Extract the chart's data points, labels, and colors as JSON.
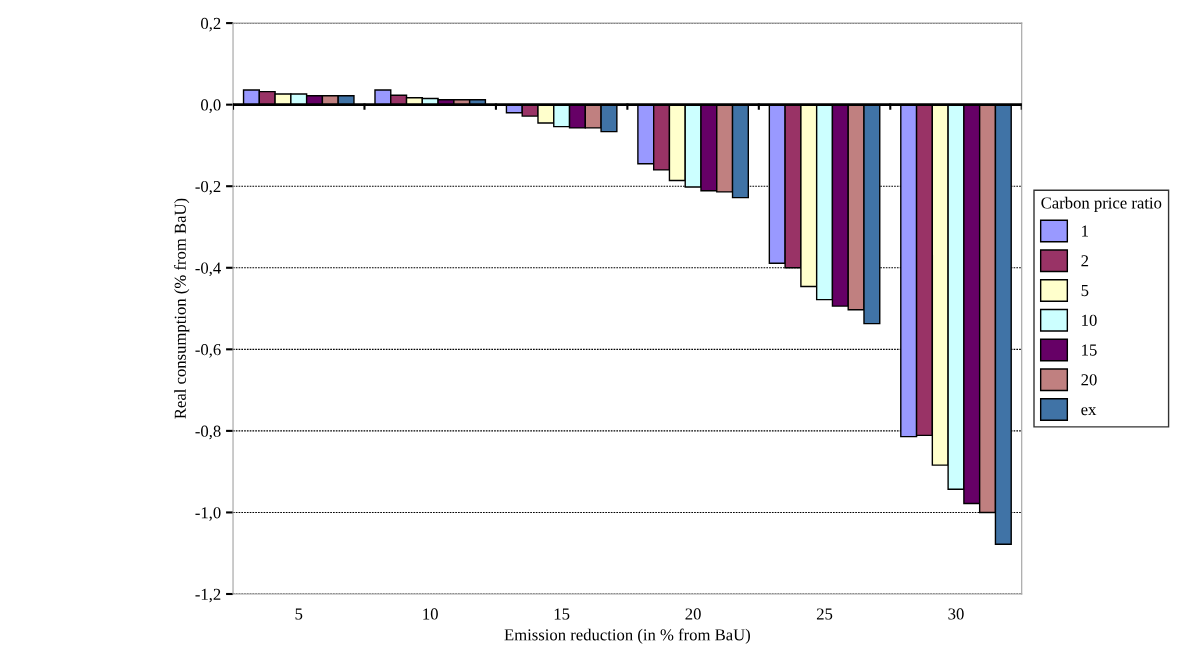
{
  "chart_data": {
    "type": "bar",
    "xlabel": "Emission reduction (in % from BaU)",
    "ylabel": "Real consumption (% from BaU)",
    "legend_title": "Carbon price ratio",
    "legend": "right",
    "grid": "y",
    "categories": [
      "5",
      "10",
      "15",
      "20",
      "25",
      "30"
    ],
    "ylim": [
      -1.2,
      0.2
    ],
    "yticks": [
      {
        "value": 0.2,
        "label": "0,2"
      },
      {
        "value": 0.0,
        "label": "0,0"
      },
      {
        "value": -0.2,
        "label": "-0,2"
      },
      {
        "value": -0.4,
        "label": "-0,4"
      },
      {
        "value": -0.6,
        "label": "-0,6"
      },
      {
        "value": -0.8,
        "label": "-0,8"
      },
      {
        "value": -1.0,
        "label": "-1,0"
      },
      {
        "value": -1.2,
        "label": "-1,2"
      }
    ],
    "ref_lines": [
      {
        "axis": "y",
        "value": 0.0,
        "color": "#000000",
        "line_style": "solid"
      }
    ],
    "series": [
      {
        "name": "1",
        "color": "#9999ff",
        "values": [
          0.036,
          0.036,
          -0.02,
          -0.145,
          -0.389,
          -0.814
        ]
      },
      {
        "name": "2",
        "color": "#993366",
        "values": [
          0.032,
          0.023,
          -0.028,
          -0.16,
          -0.4,
          -0.811
        ]
      },
      {
        "name": "5",
        "color": "#ffffcc",
        "values": [
          0.026,
          0.017,
          -0.045,
          -0.186,
          -0.446,
          -0.884
        ]
      },
      {
        "name": "10",
        "color": "#ccffff",
        "values": [
          0.026,
          0.015,
          -0.054,
          -0.202,
          -0.478,
          -0.943
        ]
      },
      {
        "name": "15",
        "color": "#660066",
        "values": [
          0.022,
          0.012,
          -0.057,
          -0.211,
          -0.494,
          -0.978
        ]
      },
      {
        "name": "20",
        "color": "#c08080",
        "values": [
          0.022,
          0.012,
          -0.057,
          -0.214,
          -0.503,
          -1.0
        ]
      },
      {
        "name": "ex",
        "color": "#4073a6",
        "values": [
          0.022,
          0.012,
          -0.066,
          -0.228,
          -0.537,
          -1.078
        ]
      }
    ]
  }
}
